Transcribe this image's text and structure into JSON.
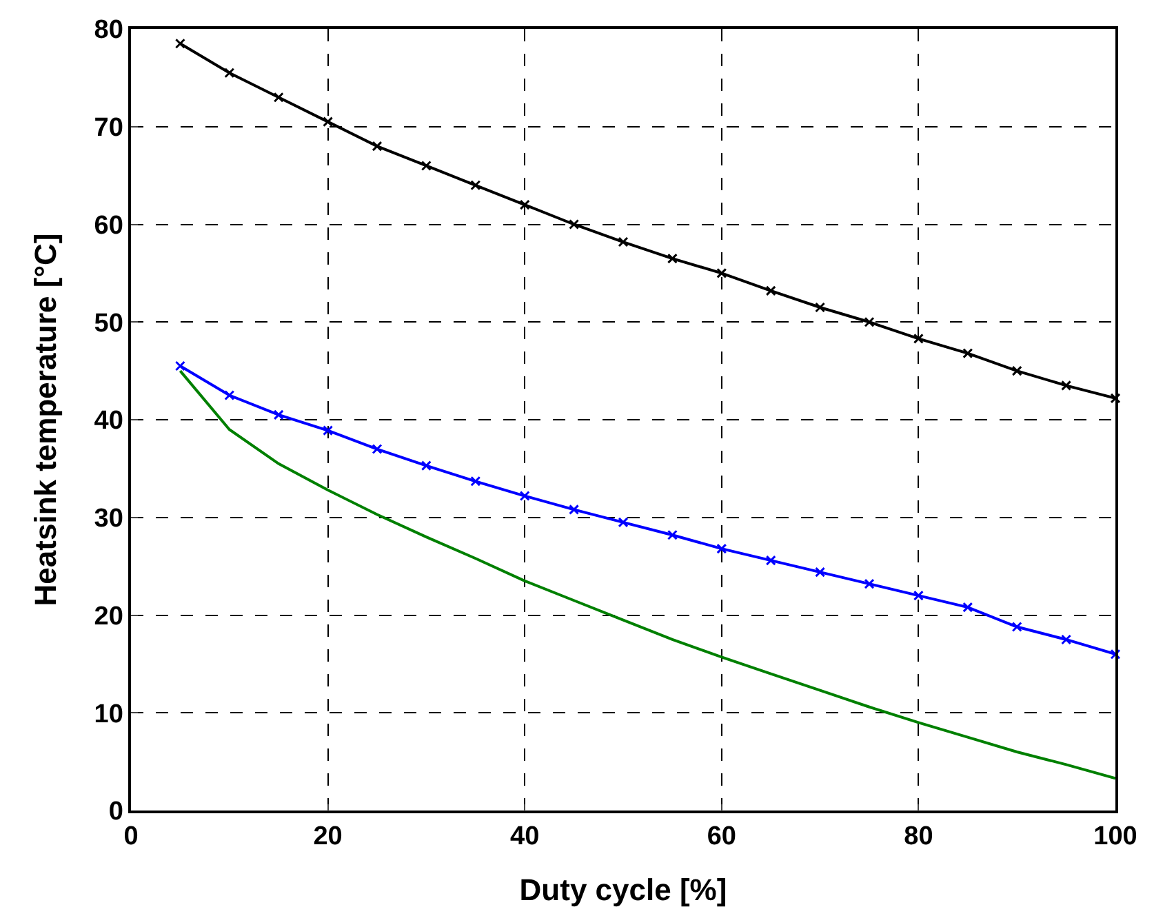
{
  "chart_data": {
    "type": "line",
    "xlabel": "Duty cycle [%]",
    "ylabel": "Heatsink temperature [°C]",
    "x": [
      5,
      10,
      15,
      20,
      25,
      30,
      35,
      40,
      45,
      50,
      55,
      60,
      65,
      70,
      75,
      80,
      85,
      90,
      95,
      100
    ],
    "series": [
      {
        "color": "#000000",
        "marker": "cross",
        "values": [
          78.5,
          75.5,
          73,
          70.5,
          68,
          66,
          64,
          62,
          60,
          58.2,
          56.5,
          55,
          53.2,
          51.5,
          50,
          48.3,
          46.8,
          45,
          43.5,
          42.2
        ]
      },
      {
        "color": "#0000ff",
        "marker": "cross",
        "values": [
          45.5,
          42.5,
          40.5,
          38.9,
          37,
          35.3,
          33.7,
          32.2,
          30.8,
          29.5,
          28.2,
          26.8,
          25.6,
          24.4,
          23.2,
          22,
          20.8,
          18.8,
          17.5,
          16
        ]
      },
      {
        "color": "#008000",
        "marker": "none",
        "values": [
          45,
          39,
          35.5,
          32.8,
          30.3,
          28,
          25.8,
          23.5,
          21.5,
          19.5,
          17.5,
          15.7,
          14,
          12.3,
          10.6,
          9,
          7.5,
          6,
          4.7,
          3.3
        ]
      }
    ],
    "xlim": [
      0,
      100
    ],
    "xticks": [
      0,
      20,
      40,
      60,
      80,
      100
    ],
    "ylim": [
      0,
      80
    ],
    "yticks": [
      0,
      10,
      20,
      30,
      40,
      50,
      60,
      70,
      80
    ],
    "grid": true,
    "line_style": "solid"
  }
}
